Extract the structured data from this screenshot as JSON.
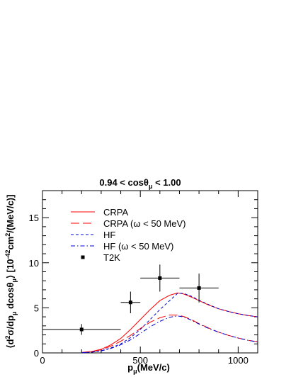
{
  "chart_data": {
    "type": "line",
    "title_parts": [
      "0.94 < cos",
      "θ",
      "μ",
      " < 1.00"
    ],
    "xlabel_parts": [
      "p",
      "μ",
      "(MeV/c)"
    ],
    "ylabel_parts": [
      "⟨d",
      "2",
      "σ/dp",
      "μ",
      " dcos",
      "θ",
      "μ",
      "⟩ [10",
      "-42",
      "cm",
      "2",
      "/(MeV/c)]"
    ],
    "xlim": [
      0,
      1100
    ],
    "ylim": [
      0,
      18
    ],
    "xticks": [
      0,
      500,
      1000
    ],
    "xtick_labels": [
      "0",
      "500",
      "1000"
    ],
    "yticks": [
      0,
      5,
      10,
      15
    ],
    "ytick_labels": [
      "0",
      "5",
      "10",
      "15"
    ],
    "grid": false,
    "legend_position": "upper-left",
    "series": [
      {
        "name": "CRPA",
        "color": "#ff0000",
        "style": "solid",
        "x": [
          200,
          250,
          300,
          350,
          400,
          450,
          500,
          550,
          600,
          650,
          690,
          720,
          760,
          800,
          850,
          900,
          950,
          1000,
          1050,
          1100
        ],
        "y": [
          0.05,
          0.15,
          0.4,
          0.9,
          1.6,
          2.6,
          3.7,
          4.8,
          5.8,
          6.4,
          6.65,
          6.55,
          6.2,
          5.8,
          5.3,
          4.9,
          4.6,
          4.35,
          4.15,
          4.0
        ]
      },
      {
        "name": "CRPA (ω < 50 MeV)",
        "color": "#ff0000",
        "style": "longdash",
        "x": [
          200,
          250,
          300,
          350,
          400,
          450,
          500,
          550,
          600,
          650,
          690,
          720,
          760,
          800,
          850,
          900,
          950,
          1000,
          1050,
          1100
        ],
        "y": [
          0.05,
          0.15,
          0.35,
          0.75,
          1.3,
          1.95,
          2.7,
          3.4,
          3.9,
          4.2,
          4.2,
          4.05,
          3.7,
          3.25,
          2.75,
          2.3,
          1.95,
          1.65,
          1.4,
          1.25
        ]
      },
      {
        "name": "HF",
        "color": "#0000cc",
        "style": "dashed",
        "x": [
          200,
          250,
          300,
          350,
          400,
          450,
          500,
          550,
          600,
          650,
          690,
          720,
          760,
          800,
          850,
          900,
          950,
          1000,
          1050,
          1100
        ],
        "y": [
          0.02,
          0.08,
          0.25,
          0.55,
          1.0,
          1.7,
          2.6,
          3.7,
          4.8,
          5.8,
          6.6,
          6.6,
          6.3,
          5.85,
          5.35,
          4.9,
          4.6,
          4.35,
          4.15,
          4.0
        ]
      },
      {
        "name": "HF (ω < 50 MeV)",
        "color": "#0000cc",
        "style": "dashdot",
        "x": [
          200,
          250,
          300,
          350,
          400,
          450,
          500,
          550,
          600,
          650,
          690,
          720,
          760,
          800,
          850,
          900,
          950,
          1000,
          1050,
          1100
        ],
        "y": [
          0.02,
          0.08,
          0.22,
          0.5,
          0.9,
          1.45,
          2.15,
          2.9,
          3.5,
          3.95,
          4.1,
          4.0,
          3.65,
          3.2,
          2.7,
          2.3,
          1.95,
          1.65,
          1.4,
          1.2
        ]
      }
    ],
    "data_points": {
      "name": "T2K",
      "color": "#000000",
      "marker": "square",
      "points": [
        {
          "x": 200,
          "y": 2.6,
          "xerr_low": 200,
          "xerr_high": 200,
          "yerr": 0.6
        },
        {
          "x": 450,
          "y": 5.6,
          "xerr_low": 50,
          "xerr_high": 50,
          "yerr": 1.2
        },
        {
          "x": 600,
          "y": 8.3,
          "xerr_low": 100,
          "xerr_high": 100,
          "yerr": 1.5
        },
        {
          "x": 800,
          "y": 7.2,
          "xerr_low": 100,
          "xerr_high": 100,
          "yerr": 1.6
        }
      ]
    }
  }
}
